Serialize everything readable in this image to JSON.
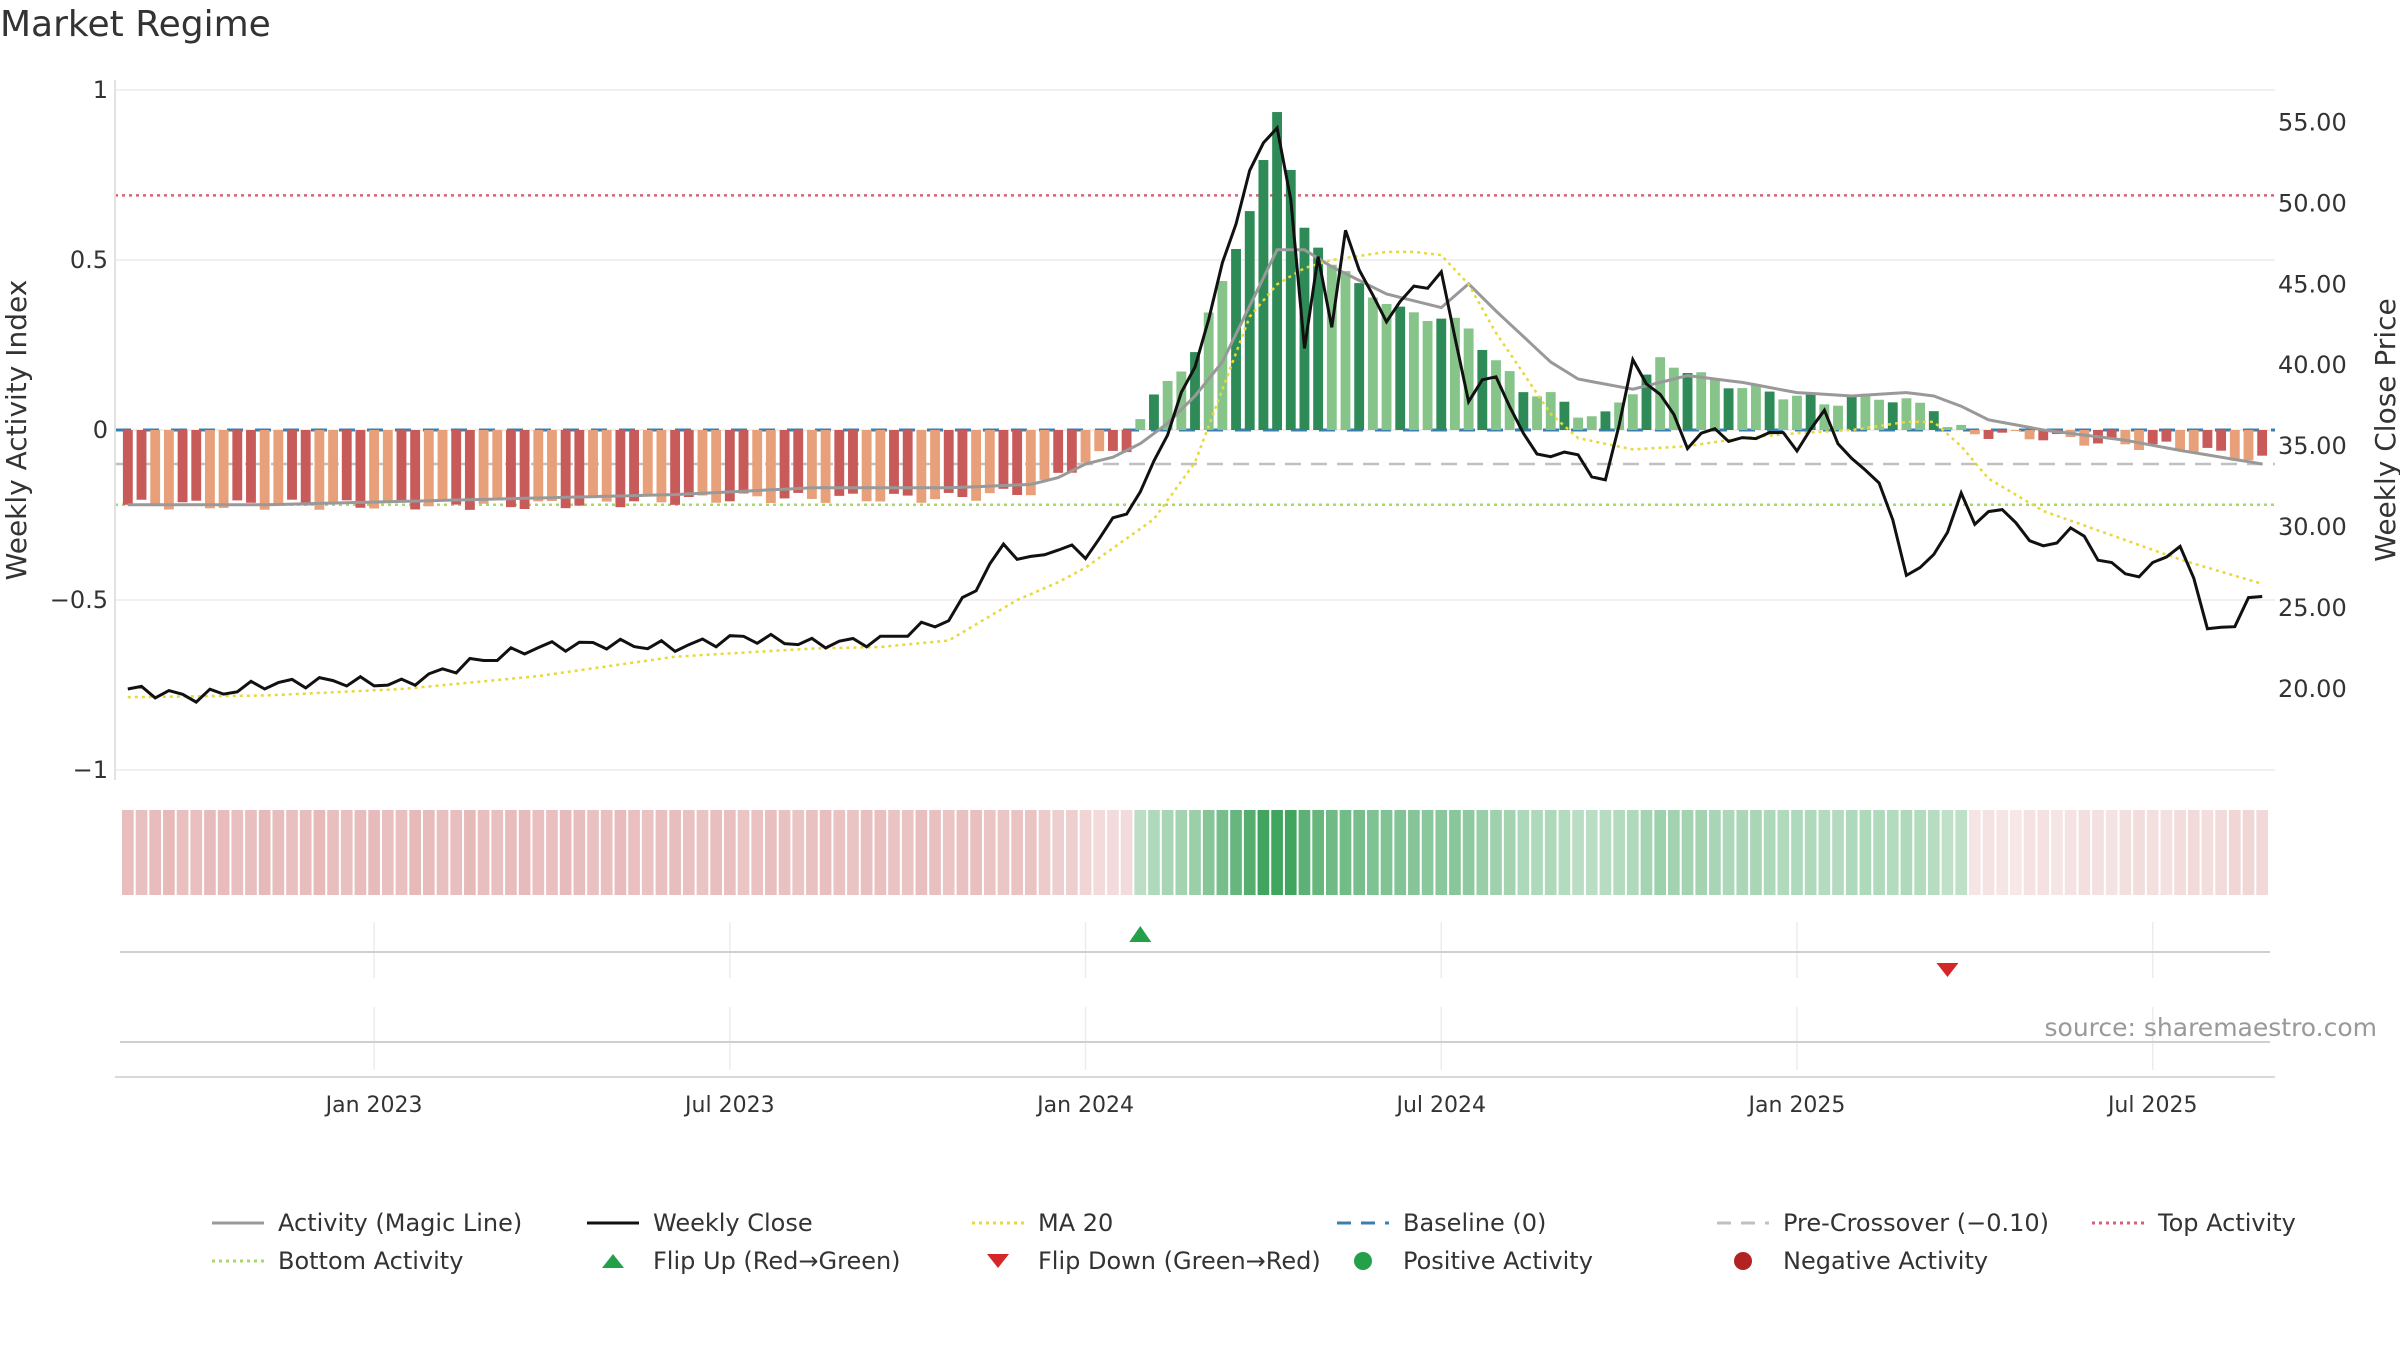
{
  "title": "Market Regime",
  "source": "source: sharemaestro.com",
  "colors": {
    "pos_dark": "#2e8b57",
    "pos_light": "#86c48a",
    "neg_dark": "#c85a5a",
    "neg_light": "#e8a07a",
    "close": "#111111",
    "ma": "#e8d83a",
    "magic": "#999999",
    "baseline": "#3b7fb0",
    "precross": "#c0c0c0",
    "top": "#d9607a",
    "bottom": "#a8d86a",
    "flip_up": "#24a148",
    "flip_down": "#d62728"
  },
  "legend": [
    {
      "key": "magic",
      "label": "Activity (Magic Line)",
      "style": "solid"
    },
    {
      "key": "close",
      "label": "Weekly Close",
      "style": "solid"
    },
    {
      "key": "ma",
      "label": "MA 20",
      "style": "dotted"
    },
    {
      "key": "baseline",
      "label": "Baseline (0)",
      "style": "dashed"
    },
    {
      "key": "precross",
      "label": "Pre-Crossover (−0.10)",
      "style": "dashed"
    },
    {
      "key": "top",
      "label": "Top Activity",
      "style": "dotted"
    },
    {
      "key": "bottom",
      "label": "Bottom Activity",
      "style": "dotted"
    },
    {
      "key": "flip_up",
      "label": "Flip Up (Red→Green)",
      "style": "tri-up"
    },
    {
      "key": "flip_down",
      "label": "Flip Down (Green→Red)",
      "style": "tri-down"
    },
    {
      "key": "flip_up",
      "label": "Positive Activity",
      "style": "dot"
    },
    {
      "key": "neg_dot",
      "label": "Negative Activity",
      "style": "dot-red"
    }
  ],
  "chart_data": {
    "type": "bar+line",
    "title": "Market Regime",
    "ylabel_left": "Weekly Activity Index",
    "ylabel_right": "Weekly Close Price",
    "left_ticks": [
      "1",
      "0.5",
      "0",
      "−0.5",
      "−1"
    ],
    "left_tick_values": [
      1,
      0.5,
      0,
      -0.5,
      -1
    ],
    "right_ticks": [
      "55.00",
      "50.00",
      "45.00",
      "40.00",
      "35.00",
      "30.00",
      "25.00",
      "20.00"
    ],
    "right_tick_values": [
      55,
      50,
      45,
      40,
      35,
      30,
      25,
      20
    ],
    "x_ticks": [
      "Jan 2023",
      "Jul 2023",
      "Jan 2024",
      "Jul 2024",
      "Jan 2025",
      "Jul 2025"
    ],
    "x_tick_weeks": [
      18,
      44,
      70,
      96,
      122,
      148
    ],
    "left_ylim": [
      -1,
      1
    ],
    "right_ylim": [
      15,
      57
    ],
    "weeks": 157,
    "top_activity": 0.69,
    "bottom_activity": -0.22,
    "pre_crossover": -0.1,
    "baseline": 0,
    "flip_up_week": 74,
    "flip_down_week": 133,
    "activity_keys": [
      0,
      18,
      30,
      45,
      60,
      66,
      70,
      73,
      74,
      76,
      78,
      80,
      82,
      84,
      86,
      88,
      90,
      92,
      93,
      94,
      96,
      98,
      100,
      102,
      104,
      106,
      108,
      110,
      112,
      114,
      116,
      118,
      120,
      122,
      124,
      126,
      128,
      130,
      132,
      133,
      135,
      140,
      145,
      150,
      156
    ],
    "activity_vals": [
      -0.22,
      -0.22,
      -0.22,
      -0.2,
      -0.2,
      -0.18,
      -0.09,
      -0.05,
      0.03,
      0.15,
      0.22,
      0.45,
      0.63,
      0.95,
      0.58,
      0.5,
      0.42,
      0.38,
      0.35,
      0.34,
      0.33,
      0.3,
      0.2,
      0.12,
      0.1,
      0.05,
      0.04,
      0.12,
      0.2,
      0.18,
      0.14,
      0.13,
      0.11,
      0.1,
      0.08,
      0.09,
      0.1,
      0.08,
      0.07,
      0.01,
      -0.01,
      -0.02,
      -0.04,
      -0.05,
      -0.09
    ],
    "magic_keys": [
      0,
      10,
      20,
      30,
      40,
      50,
      60,
      66,
      68,
      70,
      72,
      74,
      76,
      78,
      80,
      84,
      86,
      88,
      92,
      96,
      98,
      100,
      104,
      106,
      110,
      114,
      118,
      122,
      126,
      130,
      132,
      134,
      136,
      140,
      146,
      150,
      156
    ],
    "magic_vals": [
      -0.22,
      -0.22,
      -0.21,
      -0.2,
      -0.19,
      -0.17,
      -0.17,
      -0.16,
      -0.14,
      -0.1,
      -0.08,
      -0.04,
      0.02,
      0.1,
      0.2,
      0.53,
      0.53,
      0.48,
      0.4,
      0.36,
      0.43,
      0.35,
      0.2,
      0.15,
      0.12,
      0.16,
      0.14,
      0.11,
      0.1,
      0.11,
      0.1,
      0.07,
      0.03,
      0.0,
      -0.03,
      -0.06,
      -0.1
    ],
    "close_keys": [
      0,
      5,
      10,
      15,
      20,
      25,
      30,
      35,
      40,
      45,
      50,
      55,
      60,
      62,
      64,
      66,
      68,
      70,
      72,
      74,
      76,
      78,
      80,
      82,
      84,
      85,
      86,
      87,
      88,
      89,
      90,
      91,
      92,
      94,
      96,
      98,
      100,
      102,
      104,
      106,
      107,
      108,
      110,
      112,
      114,
      116,
      118,
      120,
      122,
      124,
      126,
      128,
      130,
      132,
      134,
      135,
      136,
      138,
      140,
      142,
      144,
      146,
      148,
      150,
      152,
      154,
      155,
      156
    ],
    "close_vals": [
      20,
      19.5,
      20.3,
      20.5,
      20.3,
      21.6,
      22.6,
      22.8,
      22.6,
      23.2,
      22.8,
      23,
      24.3,
      26.4,
      28.8,
      27.9,
      28.8,
      28.3,
      30.3,
      32,
      36,
      40,
      46,
      52,
      55,
      50,
      41,
      47,
      42,
      48.5,
      46,
      44,
      43,
      44.7,
      45.5,
      38,
      39.5,
      35.5,
      34.2,
      34.8,
      32.8,
      33,
      40,
      38.2,
      35.2,
      36,
      35.2,
      36,
      35,
      37,
      34,
      33,
      27.2,
      28,
      32,
      30,
      31.3,
      30.3,
      28.5,
      30,
      28.3,
      27,
      27.5,
      29,
      24,
      23.6,
      26,
      25.5
    ],
    "ma_keys": [
      0,
      10,
      20,
      30,
      40,
      50,
      55,
      60,
      65,
      68,
      70,
      75,
      78,
      82,
      84,
      86,
      88,
      92,
      94,
      96,
      98,
      100,
      104,
      106,
      110,
      114,
      118,
      122,
      126,
      130,
      132,
      134,
      136,
      140,
      145,
      150,
      156
    ],
    "ma_vals": [
      19.5,
      19.6,
      20,
      20.8,
      22,
      22.5,
      22.6,
      23,
      25.5,
      26.6,
      27.5,
      30.5,
      34,
      43,
      45,
      46,
      46.5,
      47,
      47,
      46.8,
      45,
      42,
      37,
      35.5,
      34.8,
      35,
      35.5,
      35.8,
      36,
      36.5,
      36.5,
      35,
      33,
      31,
      29.5,
      28,
      26.5
    ]
  }
}
